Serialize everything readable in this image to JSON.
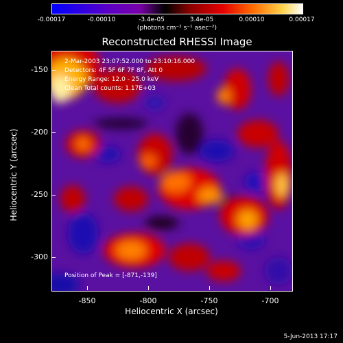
{
  "colorbar": {
    "ticks": [
      "-0.00017",
      "-0.00010",
      "-3.4e-05",
      "3.4e-05",
      "0.00010",
      "0.00017"
    ],
    "units": "(photons cm⁻² s⁻¹ asec⁻²)"
  },
  "title": "Reconstructed RHESSI Image",
  "info": {
    "line1": "2-Mar-2003 23:07:52.000 to 23:10:16.000",
    "line2": "Detectors: 4F 5F 6F 7F 8F, Att 0",
    "line3": "Energy Range: 12.0 - 25.0 keV",
    "line4": "Clean     Total counts: 1.17E+03",
    "peak": "Position of Peak = [-871,-139]"
  },
  "axes": {
    "xlabel": "Heliocentric X (arcsec)",
    "ylabel": "Heliocentric Y (arcsec)",
    "xticks": [
      "-850",
      "-800",
      "-750",
      "-700"
    ],
    "yticks": [
      "-150",
      "-200",
      "-250",
      "-300"
    ]
  },
  "datestamp": "5-Jun-2013 17:17"
}
